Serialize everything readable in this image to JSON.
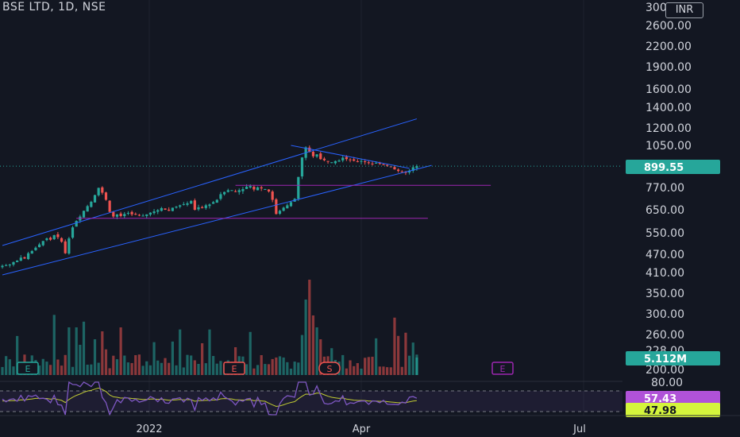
{
  "header": {
    "title": "BSE LTD, 1D, NSE",
    "currency": "INR"
  },
  "colors": {
    "up": "#26a69a",
    "down": "#ef5350",
    "channel": "#2962ff",
    "support": "#9c27b0",
    "rsi": "#7e57c2",
    "rsi_ma": "#c0ca33",
    "price_badge": "#26a69a",
    "rsi_badge": "#b052d8",
    "rsi_ma_badge": "#d4f53c"
  },
  "chart_data": [
    {
      "type": "candlestick",
      "title": "BSE LTD, 1D, NSE",
      "scale": "log",
      "y_ticks": [
        "3000.00",
        "2600.00",
        "2200.00",
        "1900.00",
        "1600.00",
        "1400.00",
        "1200.00",
        "1050.00",
        "899.55",
        "770.00",
        "650.00",
        "550.00",
        "470.00",
        "410.00",
        "350.00",
        "300.00",
        "260.00",
        "228.00",
        "200.00"
      ],
      "last_price": "899.55",
      "x_ticks": [
        "2022",
        "Apr",
        "Jul"
      ],
      "trendlines": {
        "upper_channel": [
          [
            0,
            498
          ],
          [
            112,
            1280
          ]
        ],
        "lower_channel": [
          [
            0,
            400
          ],
          [
            116,
            905
          ]
        ],
        "triangle_top": [
          [
            78,
            1050
          ],
          [
            110,
            885
          ]
        ],
        "support_high": [
          [
            63,
            780
          ],
          [
            132,
            780
          ]
        ],
        "support_low": [
          [
            20,
            610
          ],
          [
            115,
            610
          ]
        ]
      },
      "closes": [
        428,
        430,
        432,
        440,
        445,
        455,
        452,
        470,
        478,
        490,
        502,
        515,
        525,
        520,
        538,
        530,
        512,
        470,
        525,
        570,
        598,
        618,
        645,
        668,
        690,
        725,
        765,
        738,
        700,
        640,
        618,
        628,
        620,
        630,
        635,
        628,
        630,
        625,
        622,
        628,
        636,
        642,
        648,
        658,
        650,
        645,
        660,
        665,
        672,
        678,
        682,
        694,
        650,
        662,
        658,
        672,
        676,
        688,
        700,
        730,
        742,
        752,
        752,
        742,
        752,
        758,
        772,
        776,
        756,
        768,
        762,
        758,
        745,
        700,
        630,
        645,
        660,
        672,
        688,
        705,
        830,
        960,
        1035,
        1000,
        968,
        982,
        948,
        940,
        930,
        926,
        934,
        938,
        958,
        948,
        940,
        936,
        932,
        935,
        928,
        920,
        917,
        922,
        915,
        910,
        902,
        896,
        878,
        868,
        862,
        856,
        870,
        892,
        899.55
      ],
      "volume_label": "5.112M",
      "events": [
        "E",
        "E",
        "S",
        "E"
      ]
    },
    {
      "type": "line",
      "name": "RSI",
      "y_ticks": [
        "80.00",
        "57.43",
        "47.98"
      ],
      "rsi_value": "57.43",
      "rsi_ma_value": "47.98"
    }
  ]
}
